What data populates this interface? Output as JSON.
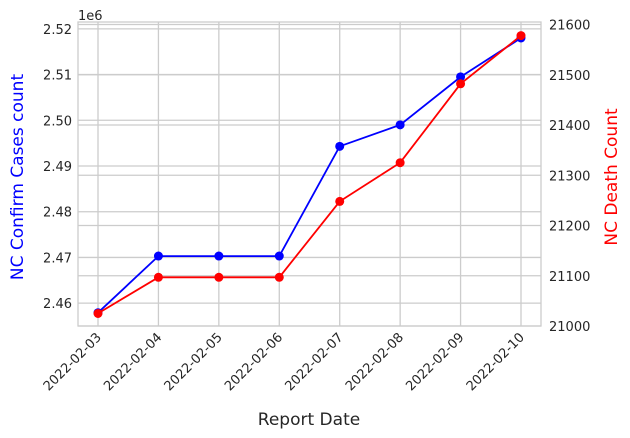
{
  "chart_data": {
    "type": "line",
    "x": [
      "2022-02-03",
      "2022-02-04",
      "2022-02-05",
      "2022-02-06",
      "2022-02-07",
      "2022-02-08",
      "2022-02-09",
      "2022-02-10"
    ],
    "xlabel": "Report Date",
    "y_left": {
      "label": "NC Confirm Cases count",
      "color": "#0000ff",
      "ylim": [
        2455000,
        2521500
      ],
      "ticks": [
        2460000,
        2470000,
        2480000,
        2490000,
        2500000,
        2510000,
        2520000
      ],
      "tick_labels": [
        "2.46",
        "2.47",
        "2.48",
        "2.49",
        "2.50",
        "2.51",
        "2.52"
      ],
      "offset_label": "1e6"
    },
    "y_right": {
      "label": "NC Death Count",
      "color": "#ff0000",
      "ylim": [
        21000,
        21605
      ],
      "ticks": [
        21000,
        21100,
        21200,
        21300,
        21400,
        21500,
        21600
      ],
      "tick_labels": [
        "21000",
        "21100",
        "21200",
        "21300",
        "21400",
        "21500",
        "21600"
      ]
    },
    "series": [
      {
        "axis": "left",
        "color": "#0000ff",
        "values": [
          2457900,
          2470300,
          2470300,
          2470300,
          2494300,
          2499000,
          2509500,
          2518000
        ]
      },
      {
        "axis": "right",
        "color": "#ff0000",
        "values": [
          21025,
          21097,
          21097,
          21097,
          21248,
          21325,
          21482,
          21578
        ]
      }
    ],
    "grid": true,
    "legend": "none"
  }
}
